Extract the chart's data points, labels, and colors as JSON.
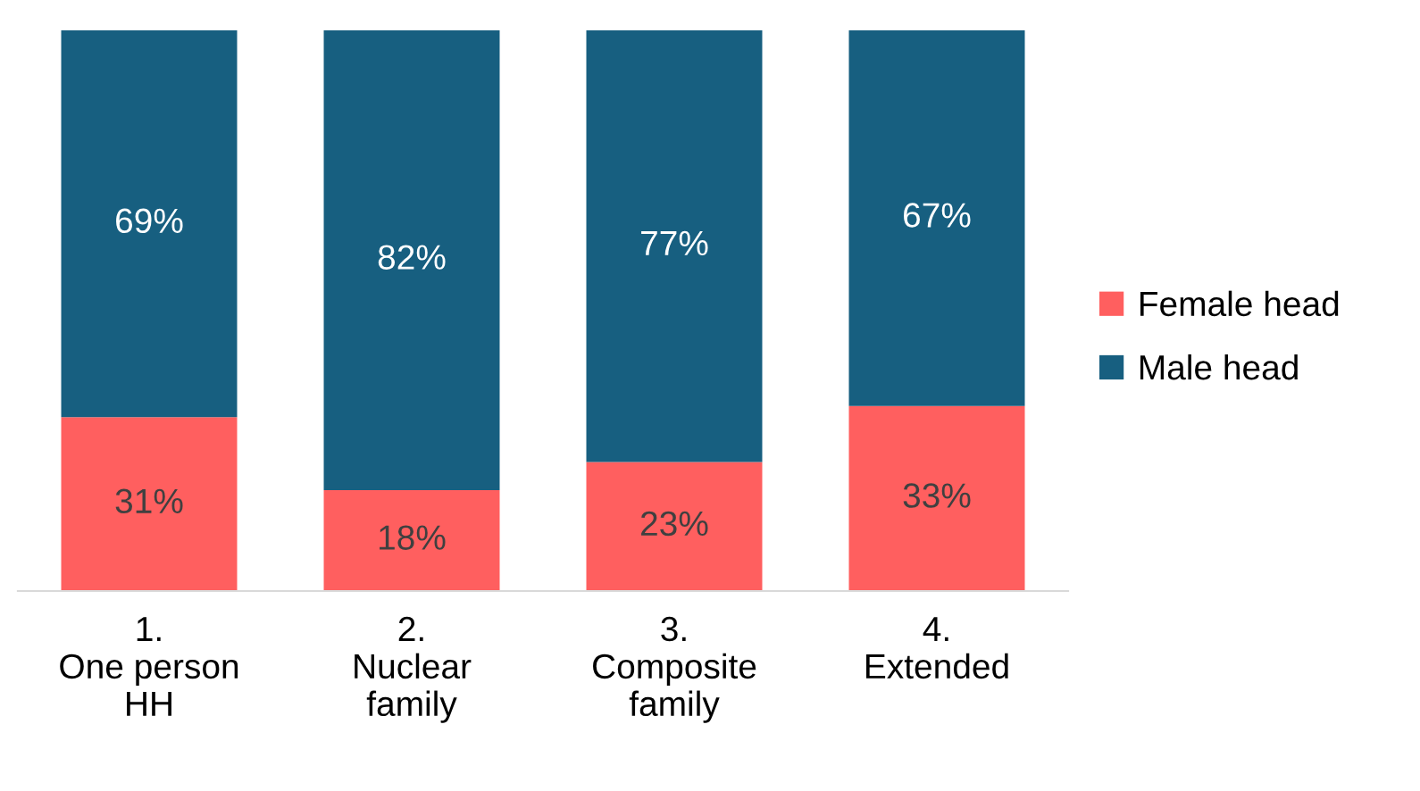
{
  "chart_data": {
    "type": "bar",
    "stacked": true,
    "categories": [
      "1.\nOne person\nHH",
      "2.\nNuclear\nfamily",
      "3.\nComposite\nfamily",
      "4.\nExtended"
    ],
    "series": [
      {
        "name": "Female head",
        "color": "#ff5f5f",
        "values": [
          31,
          18,
          23,
          33
        ],
        "value_labels": [
          "31%",
          "18%",
          "23%",
          "33%"
        ]
      },
      {
        "name": "Male head",
        "color": "#175f80",
        "values": [
          69,
          82,
          77,
          67
        ],
        "value_labels": [
          "69%",
          "82%",
          "77%",
          "67%"
        ]
      }
    ],
    "ylim": [
      0,
      100
    ],
    "tick_labels": "x",
    "grid": false,
    "legend": "right"
  }
}
